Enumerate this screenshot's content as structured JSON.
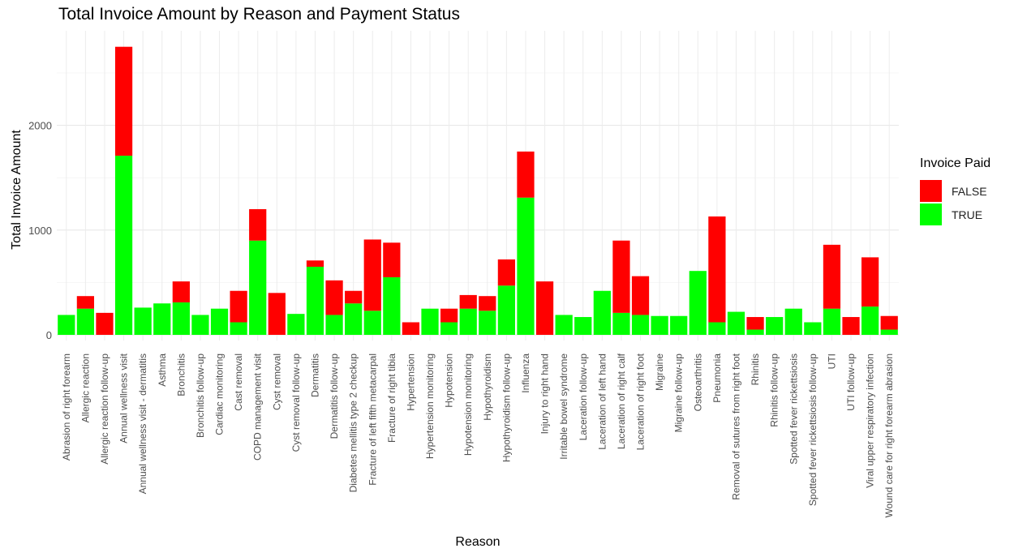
{
  "chart_data": {
    "type": "bar",
    "stacked": true,
    "title": "Total Invoice Amount by Reason and Payment Status",
    "xlabel": "Reason",
    "ylabel": "Total Invoice Amount",
    "ylim": [
      0,
      2900
    ],
    "yticks": [
      0,
      1000,
      2000
    ],
    "grid": true,
    "legend": {
      "title": "Invoice Paid",
      "position": "right"
    },
    "categories": [
      "Abrasion of right forearm",
      "Allergic reaction",
      "Allergic reaction follow-up",
      "Annual wellness visit",
      "Annual wellness visit - dermatitis",
      "Asthma",
      "Bronchitis",
      "Bronchitis follow-up",
      "Cardiac monitoring",
      "Cast removal",
      "COPD management visit",
      "Cyst removal",
      "Cyst removal follow-up",
      "Dermatitis",
      "Dermatitis follow-up",
      "Diabetes mellitis type 2 checkup",
      "Fracture of left fifth metacarpal",
      "Fracture of right tibia",
      "Hypertension",
      "Hypertension monitoring",
      "Hypotension",
      "Hypotension monitoring",
      "Hypothyroidism",
      "Hypothyroidism follow-up",
      "Influenza",
      "Injury to right hand",
      "Irritable bowel syndrome",
      "Laceration follow-up",
      "Laceration of left hand",
      "Laceration of right calf",
      "Laceration of right foot",
      "Migraine",
      "Migraine follow-up",
      "Osteoarthritis",
      "Pneumonia",
      "Removal of sutures from right foot",
      "Rhinitis",
      "Rhinitis follow-up",
      "Spotted fever rickettsiosis",
      "Spotted fever rickettsiosis follow-up",
      "UTI",
      "UTI follow-up",
      "Viral upper respiratory infection",
      "Wound care for right forearm abrasion"
    ],
    "series": [
      {
        "name": "TRUE",
        "color": "#00FF00",
        "values": [
          190,
          250,
          0,
          1710,
          260,
          300,
          310,
          190,
          250,
          120,
          900,
          0,
          200,
          650,
          190,
          300,
          230,
          550,
          0,
          250,
          120,
          250,
          230,
          470,
          1310,
          0,
          190,
          170,
          420,
          210,
          190,
          180,
          180,
          610,
          120,
          220,
          50,
          170,
          250,
          120,
          250,
          0,
          270,
          50
        ]
      },
      {
        "name": "FALSE",
        "color": "#FF0000",
        "values": [
          0,
          120,
          210,
          1040,
          0,
          0,
          200,
          0,
          0,
          300,
          300,
          400,
          0,
          60,
          330,
          120,
          680,
          330,
          120,
          0,
          130,
          130,
          140,
          250,
          440,
          510,
          0,
          0,
          0,
          690,
          370,
          0,
          0,
          0,
          1010,
          0,
          120,
          0,
          0,
          0,
          610,
          170,
          470,
          130
        ]
      }
    ]
  }
}
